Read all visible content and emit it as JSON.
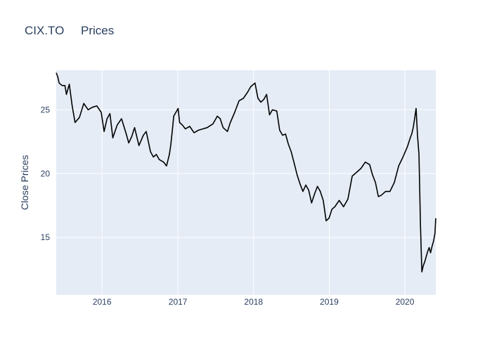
{
  "chart_data": {
    "type": "line",
    "title": "CIX.TO     Prices",
    "xlabel": "",
    "ylabel": "Close Prices",
    "xlim": [
      "2015-05-25",
      "2020-05-29"
    ],
    "ylim": [
      10.5,
      28.1
    ],
    "x_ticks": [
      "2016",
      "2017",
      "2018",
      "2019",
      "2020"
    ],
    "x_tick_dates": [
      "2016-01-01",
      "2017-01-01",
      "2018-01-01",
      "2019-01-01",
      "2020-01-01"
    ],
    "y_ticks": [
      15,
      20,
      25
    ],
    "grid": true,
    "legend": "none",
    "colors": {
      "line": "#000000",
      "plot_bg": "#e5ecf6",
      "grid": "#ffffff",
      "text": "#2a3f5f"
    },
    "series": [
      {
        "x": [
          "2015-05-25",
          "2015-06-01",
          "2015-06-08",
          "2015-06-22",
          "2015-07-06",
          "2015-07-13",
          "2015-07-27",
          "2015-08-10",
          "2015-08-24",
          "2015-09-14",
          "2015-10-05",
          "2015-10-26",
          "2015-11-16",
          "2015-12-07",
          "2015-12-28",
          "2016-01-11",
          "2016-01-25",
          "2016-02-08",
          "2016-02-22",
          "2016-03-14",
          "2016-04-04",
          "2016-04-25",
          "2016-05-09",
          "2016-05-23",
          "2016-06-06",
          "2016-06-27",
          "2016-07-18",
          "2016-08-01",
          "2016-08-22",
          "2016-09-05",
          "2016-09-19",
          "2016-10-03",
          "2016-10-24",
          "2016-11-07",
          "2016-11-21",
          "2016-11-28",
          "2016-12-05",
          "2016-12-12",
          "2017-01-02",
          "2017-01-09",
          "2017-01-23",
          "2017-02-06",
          "2017-02-27",
          "2017-03-20",
          "2017-04-10",
          "2017-05-01",
          "2017-05-22",
          "2017-06-19",
          "2017-07-10",
          "2017-07-24",
          "2017-08-07",
          "2017-08-28",
          "2017-09-11",
          "2017-10-02",
          "2017-10-23",
          "2017-11-13",
          "2017-12-04",
          "2017-12-18",
          "2018-01-08",
          "2018-01-22",
          "2018-02-05",
          "2018-02-19",
          "2018-03-05",
          "2018-03-19",
          "2018-04-02",
          "2018-04-23",
          "2018-05-07",
          "2018-05-21",
          "2018-06-04",
          "2018-06-18",
          "2018-07-02",
          "2018-07-16",
          "2018-07-30",
          "2018-08-13",
          "2018-08-27",
          "2018-09-10",
          "2018-09-24",
          "2018-10-08",
          "2018-10-22",
          "2018-11-05",
          "2018-11-19",
          "2018-12-03",
          "2018-12-17",
          "2018-12-31",
          "2019-01-14",
          "2019-01-28",
          "2019-02-18",
          "2019-03-11",
          "2019-04-01",
          "2019-04-22",
          "2019-05-13",
          "2019-06-03",
          "2019-06-24",
          "2019-07-15",
          "2019-07-29",
          "2019-08-12",
          "2019-08-26",
          "2019-09-09",
          "2019-09-30",
          "2019-10-21",
          "2019-11-11",
          "2019-12-02",
          "2019-12-23",
          "2020-01-13",
          "2020-01-27",
          "2020-02-03",
          "2020-02-10",
          "2020-02-17",
          "2020-02-24",
          "2020-03-02",
          "2020-03-09",
          "2020-03-16",
          "2020-03-23",
          "2020-03-30",
          "2020-04-06",
          "2020-04-13",
          "2020-04-20",
          "2020-04-27",
          "2020-05-04",
          "2020-05-11",
          "2020-05-18",
          "2020-05-25",
          "2020-05-29"
        ],
        "y": [
          27.9,
          27.6,
          27.1,
          26.9,
          26.9,
          26.2,
          27.0,
          25.3,
          24.0,
          24.4,
          25.5,
          25.0,
          25.2,
          25.3,
          24.8,
          23.3,
          24.3,
          24.7,
          22.8,
          23.8,
          24.3,
          23.2,
          22.4,
          22.9,
          23.6,
          22.2,
          23.0,
          23.3,
          21.7,
          21.3,
          21.5,
          21.1,
          20.9,
          20.6,
          21.5,
          22.3,
          23.4,
          24.5,
          25.1,
          24.0,
          23.8,
          23.5,
          23.7,
          23.2,
          23.4,
          23.5,
          23.6,
          23.9,
          24.5,
          24.3,
          23.6,
          23.3,
          24.0,
          24.8,
          25.7,
          25.9,
          26.4,
          26.8,
          27.1,
          25.9,
          25.6,
          25.8,
          26.2,
          24.6,
          25.0,
          24.9,
          23.4,
          23.0,
          23.1,
          22.3,
          21.7,
          20.8,
          19.9,
          19.2,
          18.6,
          19.1,
          18.7,
          17.7,
          18.4,
          19.0,
          18.6,
          17.9,
          16.3,
          16.5,
          17.2,
          17.4,
          17.9,
          17.4,
          18.0,
          19.8,
          20.1,
          20.4,
          20.9,
          20.7,
          19.9,
          19.3,
          18.2,
          18.3,
          18.6,
          18.6,
          19.3,
          20.6,
          21.3,
          22.1,
          22.8,
          23.1,
          23.6,
          24.3,
          25.1,
          23.0,
          21.5,
          16.0,
          12.3,
          12.8,
          13.1,
          13.5,
          13.9,
          14.2,
          13.8,
          14.3,
          14.7,
          15.3,
          16.5
        ]
      }
    ]
  }
}
